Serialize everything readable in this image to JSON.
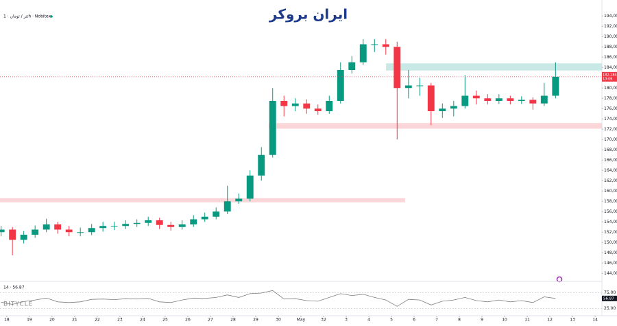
{
  "header": {
    "pair": "تتر / تومان · 1h · Nobitex",
    "logo": "ایران بروکر",
    "watermark": "BITYCLE"
  },
  "chart_data": {
    "type": "candlestick",
    "x": [
      17.75,
      18.25,
      18.75,
      19.25,
      19.75,
      20.25,
      20.75,
      21.25,
      21.75,
      22.25,
      22.75,
      23.25,
      23.75,
      24.25,
      24.75,
      25.25,
      25.75,
      26.25,
      26.75,
      27.25,
      27.75,
      28.25,
      28.75,
      29.25,
      29.75,
      30.25,
      30.75,
      31.25,
      31.75,
      32.25,
      32.75,
      33.25,
      33.75,
      34.25,
      34.75,
      35.25,
      35.75,
      36.25,
      36.75,
      37.25,
      37.75,
      38.25,
      38.75,
      39.25,
      39.75,
      40.25,
      40.75,
      41.25,
      41.75,
      42.25
    ],
    "open": [
      152000,
      152500,
      150500,
      151500,
      152500,
      153500,
      152500,
      152000,
      152000,
      152800,
      153200,
      153200,
      153600,
      153800,
      154300,
      153400,
      153000,
      153500,
      154500,
      155000,
      156000,
      158000,
      158500,
      163000,
      167000,
      177500,
      176500,
      177000,
      176000,
      175500,
      177500,
      183500,
      185000,
      188500,
      188500,
      188000,
      180000,
      180500,
      180500,
      175500,
      176000,
      176500,
      178500,
      178000,
      177500,
      178000,
      177500,
      177700,
      177000,
      178500
    ],
    "high": [
      153200,
      153000,
      152200,
      153300,
      154600,
      154000,
      153200,
      152900,
      153600,
      154000,
      154000,
      154300,
      154500,
      155000,
      154800,
      154000,
      154300,
      155300,
      155800,
      156800,
      161000,
      159500,
      164000,
      168500,
      180000,
      178500,
      178000,
      177800,
      176800,
      178500,
      185000,
      186200,
      189500,
      189500,
      189500,
      189000,
      183500,
      182000,
      181000,
      177000,
      177500,
      182500,
      179500,
      178800,
      178800,
      178500,
      178400,
      178200,
      181000,
      185000
    ],
    "low": [
      151200,
      147500,
      149800,
      150900,
      152000,
      151700,
      151200,
      151200,
      151400,
      152100,
      152400,
      152600,
      153000,
      153200,
      152600,
      152300,
      152500,
      153000,
      154000,
      154500,
      155500,
      157500,
      158000,
      162000,
      166500,
      174500,
      175500,
      175000,
      174800,
      175000,
      177000,
      182800,
      184500,
      187000,
      186500,
      170000,
      178000,
      178500,
      172800,
      174200,
      174500,
      176000,
      176800,
      176800,
      176900,
      176800,
      176900,
      175800,
      176500,
      178000
    ],
    "close": [
      152500,
      150500,
      151500,
      152500,
      153500,
      152500,
      152000,
      152000,
      152800,
      153200,
      153200,
      153600,
      153800,
      154300,
      153400,
      153000,
      153500,
      154500,
      155000,
      156000,
      158000,
      158500,
      163000,
      167000,
      177500,
      176500,
      177000,
      176000,
      175500,
      177500,
      183500,
      185000,
      188500,
      188500,
      188000,
      180000,
      180500,
      180500,
      175500,
      176000,
      176500,
      178500,
      178000,
      177500,
      178000,
      177500,
      177700,
      177000,
      178500,
      182200
    ],
    "up_color": "#089981",
    "down_color": "#f23645",
    "xlim": [
      17.7,
      44.3
    ],
    "xticks": [
      18,
      19,
      20,
      21,
      22,
      23,
      24,
      25,
      26,
      27,
      28,
      29,
      30,
      {
        "value": 31,
        "label": "May"
      },
      32,
      {
        "value": 33,
        "label": "3"
      },
      {
        "value": 34,
        "label": "4"
      },
      {
        "value": 35,
        "label": "5"
      },
      {
        "value": 36,
        "label": "6"
      },
      {
        "value": 37,
        "label": "7"
      },
      {
        "value": 38,
        "label": "8"
      },
      {
        "value": 39,
        "label": "9"
      },
      {
        "value": 40,
        "label": "10"
      },
      {
        "value": 41,
        "label": "11"
      },
      {
        "value": 42,
        "label": "12"
      },
      {
        "value": 43,
        "label": "13"
      },
      {
        "value": 44,
        "label": "14"
      }
    ],
    "ylim": [
      142700,
      197100
    ],
    "yticks": [
      {
        "value": 144000,
        "label": "144,000.0"
      },
      {
        "value": 146000,
        "label": "146,000.0"
      },
      {
        "value": 148000,
        "label": "148,000.0"
      },
      {
        "value": 150000,
        "label": "150,000.0"
      },
      {
        "value": 152000,
        "label": "152,000.0"
      },
      {
        "value": 154000,
        "label": "154,000.0"
      },
      {
        "value": 156000,
        "label": "156,000.0"
      },
      {
        "value": 158000,
        "label": "158,000.0"
      },
      {
        "value": 160000,
        "label": "160,000.0"
      },
      {
        "value": 162000,
        "label": "162,000.0"
      },
      {
        "value": 164000,
        "label": "164,000.0"
      },
      {
        "value": 166000,
        "label": "166,000.0"
      },
      {
        "value": 168000,
        "label": "168,000.0"
      },
      {
        "value": 170000,
        "label": "170,000.0"
      },
      {
        "value": 172000,
        "label": "172,000.0"
      },
      {
        "value": 174000,
        "label": "174,000.0"
      },
      {
        "value": 176000,
        "label": "176,000.0"
      },
      {
        "value": 178000,
        "label": "178,000.0"
      },
      {
        "value": 180000,
        "label": "180,000.0"
      },
      {
        "value": 184000,
        "label": "184,000.0"
      },
      {
        "value": 186000,
        "label": "186,000.0"
      },
      {
        "value": 188000,
        "label": "188,000.0"
      },
      {
        "value": 190000,
        "label": "190,000.0"
      },
      {
        "value": 192000,
        "label": "192,000.0"
      },
      {
        "value": 194000,
        "label": "194,000.0"
      }
    ],
    "zones": [
      {
        "x": [
          34.76,
          44.3
        ],
        "y": [
          183400,
          184800
        ],
        "color": "#b2dfdb"
      },
      {
        "x": [
          29.58,
          44.3
        ],
        "y": [
          172100,
          173200
        ],
        "color": "#f8c4c8"
      },
      {
        "x": [
          17.7,
          35.6
        ],
        "y": [
          157800,
          158600
        ],
        "color": "#f8c4c8"
      }
    ],
    "last_price": {
      "value": 182184,
      "label": "182,184.0"
    },
    "countdown": "10:06",
    "rsi": {
      "header": "14 · 56.87",
      "value": 56.87,
      "color": "#7e7e7e",
      "values": [
        45,
        38,
        47,
        52,
        58,
        46,
        44,
        46,
        54,
        55,
        53,
        56,
        55,
        57,
        46,
        44,
        52,
        58,
        57,
        60,
        68,
        60,
        72,
        74,
        82,
        55,
        56,
        50,
        48,
        60,
        72,
        66,
        70,
        60,
        52,
        32,
        54,
        52,
        36,
        48,
        52,
        60,
        50,
        46,
        52,
        46,
        50,
        44,
        62,
        56.87
      ],
      "ylim": [
        0,
        100
      ],
      "yticks": [
        {
          "value": 25,
          "label": "25.00"
        },
        {
          "value": 75,
          "label": "75.00"
        }
      ]
    }
  }
}
